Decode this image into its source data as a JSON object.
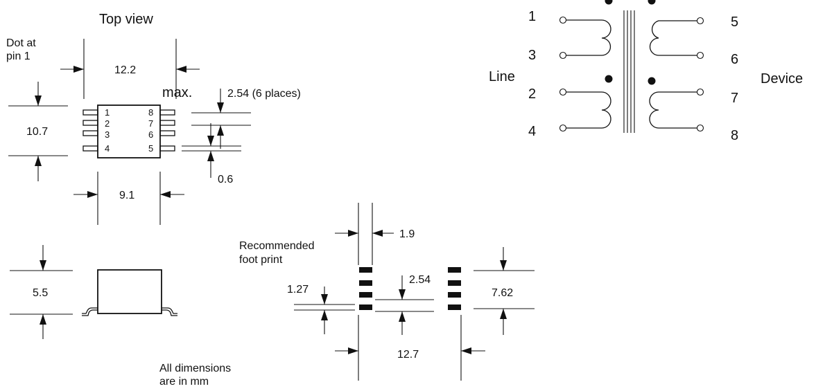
{
  "top_view": {
    "title": "Top view",
    "dot_note_line1": "Dot at",
    "dot_note_line2": "pin  1",
    "width_dim": "12.2",
    "max_label": "max.",
    "height_dim": "10.7",
    "body_width_dim": "9.1",
    "pitch_dim": "2.54  (6 places)",
    "lead_width_dim": "0.6",
    "left_pins": [
      "1",
      "2",
      "3",
      "4"
    ],
    "right_pins": [
      "8",
      "7",
      "6",
      "5"
    ]
  },
  "side_view": {
    "height_dim": "5.5"
  },
  "footprint": {
    "title_line1": "Recommended",
    "title_line2": "foot print",
    "pad_width_dim": "1.9",
    "pad_height_dim": "1.27",
    "pitch_dim": "2.54",
    "row_span_dim": "7.62",
    "center_span_dim": "12.7"
  },
  "units_note_line1": "All dimensions",
  "units_note_line2": "are in  mm",
  "schematic": {
    "side_left": "Line",
    "side_right": "Device",
    "left_pins": [
      "1",
      "3",
      "2",
      "4"
    ],
    "right_pins": [
      "5",
      "6",
      "7",
      "8"
    ]
  }
}
